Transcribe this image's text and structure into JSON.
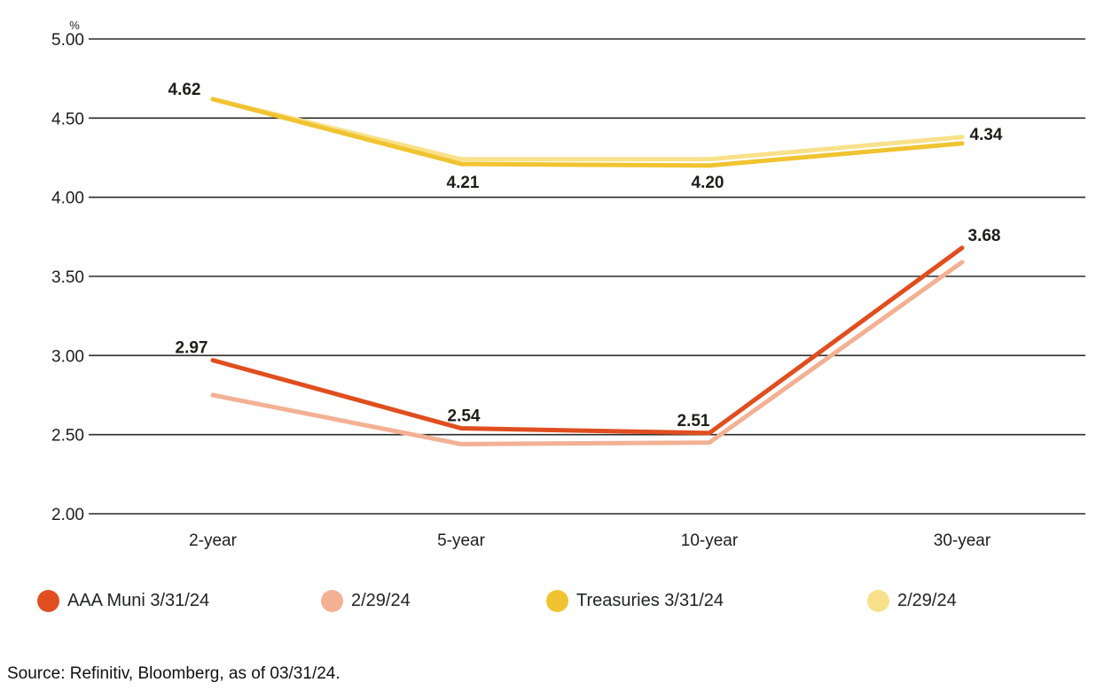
{
  "chart_data": {
    "type": "line",
    "title": "",
    "y_unit": "%",
    "categories": [
      "2-year",
      "5-year",
      "10-year",
      "30-year"
    ],
    "series": [
      {
        "name": "AAA Muni 3/31/24",
        "color": "#E04E1F",
        "values": [
          2.97,
          2.54,
          2.51,
          3.68
        ],
        "point_labels": [
          "2.97",
          "2.54",
          "2.51",
          "3.68"
        ]
      },
      {
        "name": "2/29/24",
        "color": "#F3B093",
        "values": [
          2.75,
          2.44,
          2.45,
          3.59
        ],
        "point_labels": []
      },
      {
        "name": "Treasuries 3/31/24",
        "color": "#F0C330",
        "values": [
          4.62,
          4.21,
          4.2,
          4.34
        ],
        "point_labels": [
          "4.62",
          "4.21",
          "4.20",
          "4.34"
        ]
      },
      {
        "name": "2/29/24",
        "color": "#F8E18A",
        "values": [
          4.62,
          4.24,
          4.24,
          4.38
        ],
        "point_labels": []
      }
    ],
    "ylim": [
      2.0,
      5.0
    ],
    "ytick_labels": [
      "5.00",
      "4.50",
      "4.00",
      "3.50",
      "3.00",
      "2.50",
      "2.00"
    ],
    "grid": true,
    "gridline_color": "#2b2b2b",
    "legend_position": "bottom"
  },
  "footer": {
    "source": "Source: Refinitiv, Bloomberg, as of 03/31/24."
  }
}
